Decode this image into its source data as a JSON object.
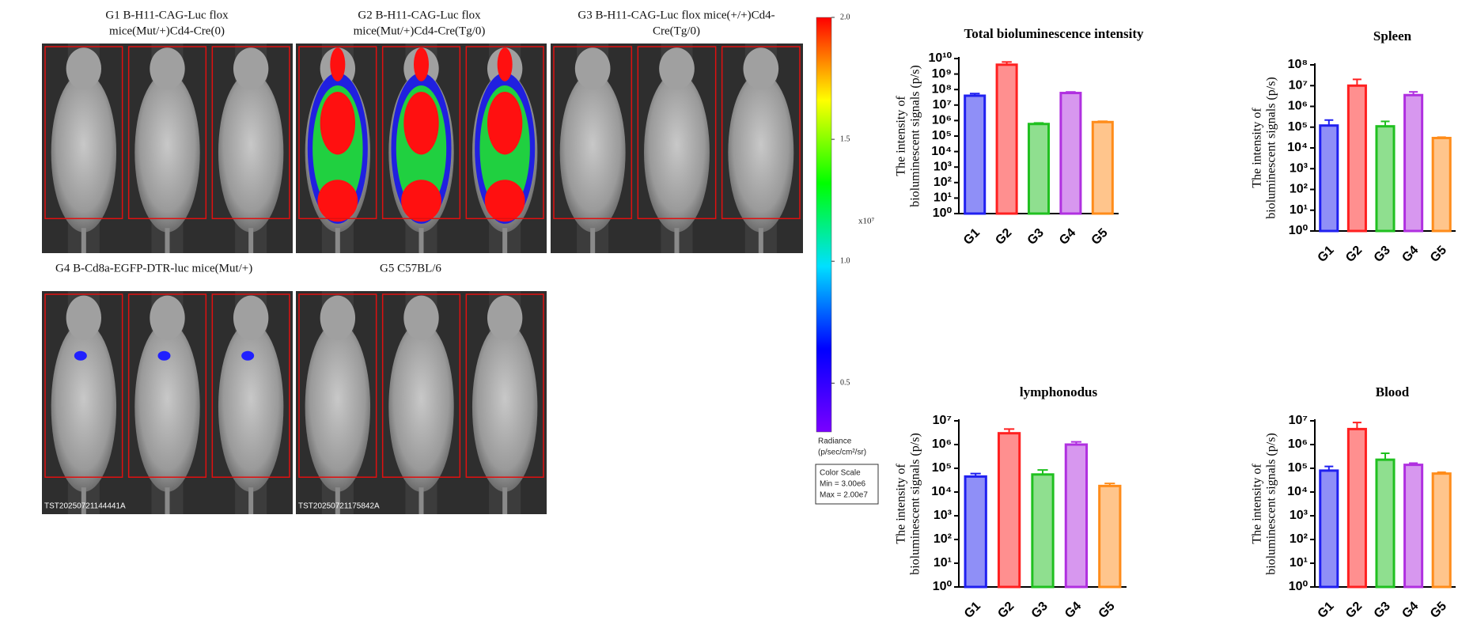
{
  "panels": [
    {
      "title_lines": [
        "G1 B-H11-CAG-Luc flox",
        "mice(Mut/+)Cd4-Cre(0)"
      ]
    },
    {
      "title_lines": [
        "G2 B-H11-CAG-Luc flox",
        "mice(Mut/+)Cd4-Cre(Tg/0)"
      ]
    },
    {
      "title_lines": [
        "G3 B-H11-CAG-Luc flox mice(+/+)Cd4-",
        "Cre(Tg/0)"
      ]
    },
    {
      "title_lines": [
        "G4  B-Cd8a-EGFP-DTR-luc mice(Mut/+)"
      ],
      "stamp": "TST20250721144441A"
    },
    {
      "title_lines": [
        "G5 C57BL/6"
      ],
      "stamp": "TST20250721175842A"
    }
  ],
  "chart_data": [
    {
      "type": "colorbar",
      "ylim": [
        0.3,
        2.0
      ],
      "yticks": [
        {
          "value": 2,
          "label": "2.0"
        },
        1.5,
        {
          "value": 1,
          "label": "1.0"
        },
        0.5
      ],
      "multiplier": "x10⁷",
      "unit_lines": [
        "Radiance",
        "(p/sec/cm²/sr)"
      ],
      "box_lines": [
        "Color Scale",
        "Min = 3.00e6",
        "Max = 2.00e7"
      ],
      "colors": [
        "#7a00ff",
        "#0000ff",
        "#00e0ff",
        "#00ff00",
        "#ffff00",
        "#ff0000"
      ]
    },
    {
      "type": "bar",
      "title": "Total bioluminescence intensity",
      "log_scale": true,
      "ylabel_lines": [
        "The intensity of",
        "bioluminescent signals (p/s)"
      ],
      "categories": [
        "G1",
        "G2",
        "G3",
        "G4",
        "G5"
      ],
      "colors": [
        "#2020f0",
        "#ff2020",
        "#20c020",
        "#b030e0",
        "#ff8c1a"
      ],
      "values": [
        40000000,
        4000000000,
        600000,
        60000000,
        800000
      ],
      "errors": [
        15000000,
        2000000000,
        100000,
        10000000,
        100000
      ],
      "ylim": [
        1,
        10000000000
      ],
      "yticks": [
        {
          "value": 1,
          "label": "10⁰"
        },
        {
          "value": 10,
          "label": "10¹"
        },
        {
          "value": 100,
          "label": "10²"
        },
        {
          "value": 1000,
          "label": "10³"
        },
        {
          "value": 10000,
          "label": "10⁴"
        },
        {
          "value": 100000,
          "label": "10⁵"
        },
        {
          "value": 1000000,
          "label": "10⁶"
        },
        {
          "value": 10000000,
          "label": "10⁷"
        },
        {
          "value": 100000000,
          "label": "10⁸"
        },
        {
          "value": 1000000000,
          "label": "10⁹"
        },
        {
          "value": 10000000000,
          "label": "10¹⁰"
        }
      ]
    },
    {
      "type": "bar",
      "title": "Spleen",
      "log_scale": true,
      "ylabel_lines": [
        "The intensity of",
        "bioluminescent signals (p/s)"
      ],
      "categories": [
        "G1",
        "G2",
        "G3",
        "G4",
        "G5"
      ],
      "colors": [
        "#2020f0",
        "#ff2020",
        "#20c020",
        "#b030e0",
        "#ff8c1a"
      ],
      "values": [
        120000,
        10000000,
        110000,
        3500000,
        30000
      ],
      "errors": [
        100000,
        10000000,
        80000,
        1500000,
        3000
      ],
      "ylim": [
        1,
        100000000
      ],
      "yticks": [
        {
          "value": 1,
          "label": "10⁰"
        },
        {
          "value": 10,
          "label": "10¹"
        },
        {
          "value": 100,
          "label": "10²"
        },
        {
          "value": 1000,
          "label": "10³"
        },
        {
          "value": 10000,
          "label": "10⁴"
        },
        {
          "value": 100000,
          "label": "10⁵"
        },
        {
          "value": 1000000,
          "label": "10⁶"
        },
        {
          "value": 10000000,
          "label": "10⁷"
        },
        {
          "value": 100000000,
          "label": "10⁸"
        }
      ]
    },
    {
      "type": "bar",
      "title": "lymphonodus",
      "log_scale": true,
      "ylabel_lines": [
        "The intensity of",
        "bioluminescent signals (p/s)"
      ],
      "categories": [
        "G1",
        "G2",
        "G3",
        "G4",
        "G5"
      ],
      "colors": [
        "#2020f0",
        "#ff2020",
        "#20c020",
        "#b030e0",
        "#ff8c1a"
      ],
      "values": [
        45000,
        3000000,
        55000,
        1000000,
        18000
      ],
      "errors": [
        15000,
        1500000,
        30000,
        300000,
        5000
      ],
      "ylim": [
        1,
        10000000
      ],
      "yticks": [
        {
          "value": 1,
          "label": "10⁰"
        },
        {
          "value": 10,
          "label": "10¹"
        },
        {
          "value": 100,
          "label": "10²"
        },
        {
          "value": 1000,
          "label": "10³"
        },
        {
          "value": 10000,
          "label": "10⁴"
        },
        {
          "value": 100000,
          "label": "10⁵"
        },
        {
          "value": 1000000,
          "label": "10⁶"
        },
        {
          "value": 10000000,
          "label": "10⁷"
        }
      ]
    },
    {
      "type": "bar",
      "title": "Blood",
      "log_scale": true,
      "ylabel_lines": [
        "The intensity of",
        "bioluminescent signals (p/s)"
      ],
      "categories": [
        "G1",
        "G2",
        "G3",
        "G4",
        "G5"
      ],
      "colors": [
        "#2020f0",
        "#ff2020",
        "#20c020",
        "#b030e0",
        "#ff8c1a"
      ],
      "values": [
        80000,
        4500000,
        230000,
        140000,
        60000
      ],
      "errors": [
        40000,
        4000000,
        200000,
        25000,
        8000
      ],
      "ylim": [
        1,
        10000000
      ],
      "yticks": [
        {
          "value": 1,
          "label": "10⁰"
        },
        {
          "value": 10,
          "label": "10¹"
        },
        {
          "value": 100,
          "label": "10²"
        },
        {
          "value": 1000,
          "label": "10³"
        },
        {
          "value": 10000,
          "label": "10⁴"
        },
        {
          "value": 100000,
          "label": "10⁵"
        },
        {
          "value": 1000000,
          "label": "10⁶"
        },
        {
          "value": 10000000,
          "label": "10⁷"
        }
      ]
    }
  ]
}
